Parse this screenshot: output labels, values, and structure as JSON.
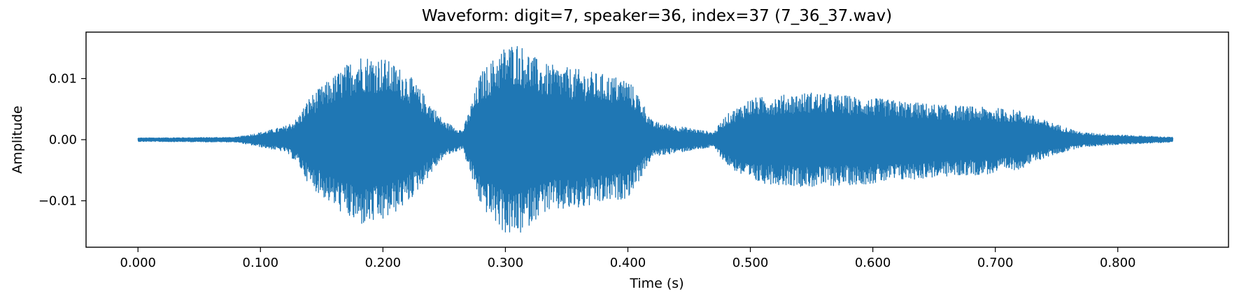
{
  "chart_data": {
    "type": "line",
    "title": "Waveform: digit=7, speaker=36, index=37  (7_36_37.wav)",
    "xlabel": "Time (s)",
    "ylabel": "Amplitude",
    "xlim": [
      -0.0424,
      0.8904
    ],
    "ylim": [
      -0.0176,
      0.0176
    ],
    "grid": false,
    "line_color": "#1f77b4",
    "x_ticks": [
      {
        "value": 0.0,
        "label": "0.000"
      },
      {
        "value": 0.1,
        "label": "0.100"
      },
      {
        "value": 0.2,
        "label": "0.200"
      },
      {
        "value": 0.3,
        "label": "0.300"
      },
      {
        "value": 0.4,
        "label": "0.400"
      },
      {
        "value": 0.5,
        "label": "0.500"
      },
      {
        "value": 0.6,
        "label": "0.600"
      },
      {
        "value": 0.7,
        "label": "0.700"
      },
      {
        "value": 0.8,
        "label": "0.800"
      }
    ],
    "y_ticks": [
      {
        "value": 0.01,
        "label": "0.01"
      },
      {
        "value": 0.0,
        "label": "0.00"
      },
      {
        "value": -0.01,
        "label": "−0.01"
      }
    ],
    "series": [
      {
        "envelope": {
          "time": [
            0.0,
            0.08,
            0.1,
            0.12,
            0.13,
            0.14,
            0.16,
            0.18,
            0.2,
            0.22,
            0.25,
            0.265,
            0.27,
            0.28,
            0.3,
            0.31,
            0.33,
            0.36,
            0.4,
            0.41,
            0.42,
            0.47,
            0.48,
            0.5,
            0.55,
            0.6,
            0.65,
            0.7,
            0.72,
            0.74,
            0.77,
            0.8,
            0.845
          ],
          "max": [
            0.0003,
            0.0004,
            0.0012,
            0.0022,
            0.0035,
            0.007,
            0.0105,
            0.014,
            0.0135,
            0.011,
            0.003,
            0.0015,
            0.0045,
            0.011,
            0.0155,
            0.016,
            0.0125,
            0.0115,
            0.01,
            0.007,
            0.003,
            0.0012,
            0.004,
            0.0068,
            0.0078,
            0.0068,
            0.0058,
            0.0052,
            0.0048,
            0.0032,
            0.0012,
            0.0008,
            0.0004
          ],
          "min": [
            -0.0003,
            -0.0004,
            -0.0012,
            -0.002,
            -0.0038,
            -0.0075,
            -0.011,
            -0.0142,
            -0.0135,
            -0.0105,
            -0.0028,
            -0.0015,
            -0.0048,
            -0.011,
            -0.0155,
            -0.016,
            -0.012,
            -0.0115,
            -0.0095,
            -0.0065,
            -0.0028,
            -0.0012,
            -0.004,
            -0.007,
            -0.0078,
            -0.0072,
            -0.0062,
            -0.0056,
            -0.0048,
            -0.003,
            -0.0012,
            -0.0008,
            -0.0004
          ]
        }
      }
    ]
  }
}
